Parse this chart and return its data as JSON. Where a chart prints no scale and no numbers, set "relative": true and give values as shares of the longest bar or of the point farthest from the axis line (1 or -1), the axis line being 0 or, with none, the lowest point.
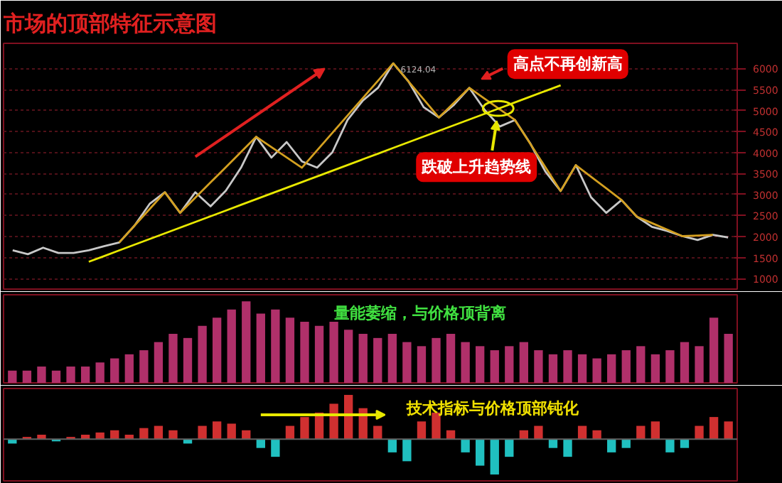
{
  "chart_data": [
    {
      "type": "line",
      "title": "市场的顶部特征示意图",
      "categories": [
        null,
        null,
        null,
        null,
        null,
        null,
        null,
        null,
        null,
        null,
        null,
        null,
        null,
        null,
        null,
        null,
        null,
        null,
        null,
        null,
        null,
        null,
        null,
        null,
        null,
        null,
        null,
        null,
        null,
        null,
        null,
        null,
        null,
        null,
        null,
        null,
        null,
        null,
        null,
        null,
        null,
        null,
        null,
        null,
        null,
        null,
        null,
        null
      ],
      "ylim": [
        750,
        6600
      ],
      "yticks": [
        1000,
        1500,
        2000,
        2500,
        3000,
        3500,
        4000,
        4500,
        5000,
        5500,
        6000
      ],
      "grid": "y",
      "tick_labels": "y",
      "annotations": [
        "6124.04",
        "高点不再创新高",
        "跌破上升趋势线"
      ],
      "series": [
        {
          "color": "#c8c8c8",
          "values": [
            1675,
            1580,
            1735,
            1610,
            1610,
            1675,
            1770,
            1860,
            2260,
            2780,
            3055,
            2565,
            3055,
            2720,
            3090,
            3640,
            4375,
            3880,
            4250,
            3790,
            3640,
            4005,
            4775,
            5235,
            5540,
            6124,
            5695,
            5080,
            4835,
            5140,
            5540,
            5020,
            4620,
            4775,
            4220,
            3545,
            3085,
            3700,
            2935,
            2565,
            2870,
            2475,
            2230,
            2135,
            2010,
            1920,
            2040,
            1980
          ]
        },
        {
          "color": "#d4a020",
          "values": [
            null,
            null,
            null,
            null,
            null,
            null,
            null,
            1860,
            2258,
            2657,
            3055,
            2565,
            2927,
            3289,
            3651,
            4013,
            4375,
            4130,
            3885,
            3640,
            4054,
            4468,
            4882,
            5296,
            5710,
            6124,
            5694,
            5265,
            4835,
            5188,
            5540,
            5285,
            5030,
            4775,
            4212,
            3648,
            3085,
            3700,
            3423,
            3147,
            2870,
            2475,
            2320,
            2165,
            2010,
            2025,
            2040,
            null
          ]
        },
        {
          "color": "#e8e800",
          "values": [
            null,
            null,
            null,
            null,
            null,
            1400,
            1535,
            1671,
            1806,
            1942,
            2077,
            2213,
            2348,
            2484,
            2619,
            2755,
            2890,
            3026,
            3161,
            3297,
            3432,
            3568,
            3703,
            3839,
            3974,
            4110,
            4245,
            4381,
            4516,
            4652,
            4787,
            4923,
            5058,
            5194,
            5329,
            5465,
            5600,
            null,
            null,
            null,
            null,
            null,
            null,
            null,
            null,
            null,
            null,
            null
          ]
        }
      ]
    },
    {
      "type": "bar",
      "relative": true,
      "categories": [
        null,
        null,
        null,
        null,
        null,
        null,
        null,
        null,
        null,
        null,
        null,
        null,
        null,
        null,
        null,
        null,
        null,
        null,
        null,
        null,
        null,
        null,
        null,
        null,
        null,
        null,
        null,
        null,
        null,
        null,
        null,
        null,
        null,
        null,
        null,
        null,
        null,
        null,
        null,
        null,
        null,
        null,
        null,
        null,
        null,
        null,
        null,
        null,
        null,
        null
      ],
      "tick_labels": false,
      "annotations": [
        "量能萎缩，与价格顶背离"
      ],
      "series": [
        {
          "color": "#b0306a",
          "values": [
            0.15,
            0.15,
            0.2,
            0.15,
            0.2,
            0.2,
            0.25,
            0.3,
            0.35,
            0.4,
            0.5,
            0.6,
            0.55,
            0.7,
            0.8,
            0.9,
            1.0,
            0.85,
            0.9,
            0.8,
            0.75,
            0.7,
            0.75,
            0.65,
            0.6,
            0.55,
            0.6,
            0.5,
            0.45,
            0.55,
            0.6,
            0.5,
            0.45,
            0.4,
            0.45,
            0.5,
            0.4,
            0.35,
            0.4,
            0.35,
            0.3,
            0.35,
            0.4,
            0.45,
            0.35,
            0.4,
            0.5,
            0.45,
            0.8,
            0.6
          ]
        }
      ]
    },
    {
      "type": "bar",
      "relative": true,
      "categories": [
        null,
        null,
        null,
        null,
        null,
        null,
        null,
        null,
        null,
        null,
        null,
        null,
        null,
        null,
        null,
        null,
        null,
        null,
        null,
        null,
        null,
        null,
        null,
        null,
        null,
        null,
        null,
        null,
        null,
        null,
        null,
        null,
        null,
        null,
        null,
        null,
        null,
        null,
        null,
        null,
        null,
        null,
        null,
        null,
        null,
        null,
        null,
        null,
        null,
        null
      ],
      "tick_labels": false,
      "annotations": [
        "技术指标与价格顶部钝化"
      ],
      "series": [
        {
          "colors": [
            "#20c0c0",
            "#d03030",
            "#d03030",
            "#20c0c0",
            "#d03030",
            "#d03030",
            "#d03030",
            "#d03030",
            "#d03030",
            "#d03030",
            "#d03030",
            "#d03030",
            "#20c0c0",
            "#d03030",
            "#d03030",
            "#d03030",
            "#d03030",
            "#20c0c0",
            "#20c0c0",
            "#d03030",
            "#d03030",
            "#d03030",
            "#d03030",
            "#d03030",
            "#d03030",
            "#d03030",
            "#20c0c0",
            "#20c0c0",
            "#d03030",
            "#d03030",
            "#d03030",
            "#20c0c0",
            "#20c0c0",
            "#20c0c0",
            "#20c0c0",
            "#d03030",
            "#d03030",
            "#20c0c0",
            "#20c0c0",
            "#d03030",
            "#d03030",
            "#20c0c0",
            "#20c0c0",
            "#d03030",
            "#d03030",
            "#20c0c0",
            "#20c0c0",
            "#d03030",
            "#d03030",
            "#d03030"
          ],
          "values": [
            -0.1,
            0.05,
            0.1,
            -0.05,
            0.05,
            0.1,
            0.15,
            0.2,
            0.1,
            0.25,
            0.3,
            0.2,
            -0.1,
            0.3,
            0.4,
            0.35,
            0.2,
            -0.2,
            -0.4,
            0.3,
            0.5,
            0.6,
            0.8,
            1.0,
            0.7,
            0.3,
            -0.3,
            -0.5,
            0.4,
            0.6,
            0.2,
            -0.3,
            -0.6,
            -0.8,
            -0.4,
            0.2,
            0.3,
            -0.2,
            -0.4,
            0.3,
            0.2,
            -0.3,
            -0.2,
            0.3,
            0.4,
            -0.3,
            -0.2,
            0.3,
            0.5,
            0.4
          ]
        }
      ]
    }
  ]
}
